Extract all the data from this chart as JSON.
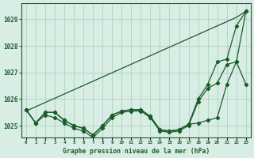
{
  "title": "Graphe pression niveau de la mer (hPa)",
  "xlabel_ticks": [
    "0",
    "1",
    "2",
    "3",
    "4",
    "5",
    "6",
    "7",
    "8",
    "9",
    "10",
    "11",
    "12",
    "13",
    "14",
    "15",
    "16",
    "17",
    "18",
    "19",
    "20",
    "21",
    "22",
    "23"
  ],
  "yticks": [
    1025,
    1026,
    1027,
    1028,
    1029
  ],
  "ylim": [
    1024.55,
    1029.6
  ],
  "xlim": [
    -0.5,
    23.5
  ],
  "background_color": "#d8ede4",
  "grid_color": "#aacbbb",
  "line_color": "#1a5c2a",
  "text_color": "#1a5c2a",
  "line_straight": [
    1025.55,
    1025.71,
    1025.87,
    1026.03,
    1026.19,
    1026.35,
    1026.51,
    1026.67,
    1026.83,
    1026.99,
    1027.15,
    1027.31,
    1027.47,
    1027.63,
    1027.79,
    1027.95,
    1028.11,
    1028.27,
    1028.43,
    1028.59,
    1028.75,
    1028.91,
    1029.07,
    1029.3
  ],
  "line_zigzag": [
    1025.6,
    1025.1,
    1025.5,
    1025.5,
    1025.2,
    1025.0,
    1024.9,
    1024.65,
    1025.0,
    1025.4,
    1025.55,
    1025.6,
    1025.6,
    1025.35,
    1024.85,
    1024.8,
    1024.85,
    1025.05,
    1025.1,
    1025.2,
    1025.3,
    1026.55,
    1027.4,
    1029.3
  ],
  "line_upper": [
    1025.6,
    1025.1,
    1025.5,
    1025.5,
    1025.2,
    1025.0,
    1024.9,
    1024.65,
    1025.0,
    1025.4,
    1025.55,
    1025.6,
    1025.6,
    1025.35,
    1024.85,
    1024.8,
    1024.85,
    1025.05,
    1026.0,
    1026.55,
    1027.4,
    1027.5,
    1028.75,
    1029.3
  ],
  "line_lower": [
    1025.6,
    1025.1,
    1025.4,
    1025.3,
    1025.1,
    1024.9,
    1024.8,
    1024.55,
    1024.9,
    1025.3,
    1025.5,
    1025.55,
    1025.55,
    1025.3,
    1024.8,
    1024.75,
    1024.8,
    1025.0,
    1025.9,
    1026.4,
    1026.6,
    1027.3,
    1027.4,
    1026.55
  ],
  "marker": "D",
  "markersize": 2.2,
  "linewidth": 0.9
}
